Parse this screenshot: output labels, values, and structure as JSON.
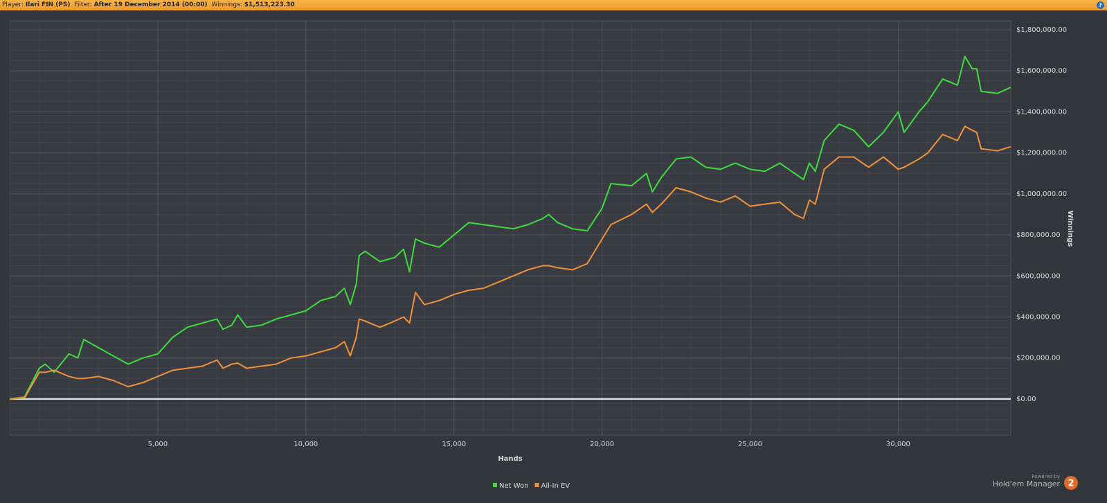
{
  "header": {
    "player_label": "Player:",
    "player": "Ilari FIN (PS)",
    "filter_label": "Filter:",
    "filter": "After 19 December 2014 (00:00)",
    "winnings_label": "Winnings:",
    "winnings": "$1,513,223.30",
    "help_icon": "?"
  },
  "chart_data": {
    "type": "line",
    "xlabel": "Hands",
    "ylabel": "Winnings",
    "x": [
      0,
      500,
      1000,
      1200,
      1500,
      2000,
      2300,
      2500,
      3000,
      3500,
      4000,
      4500,
      5000,
      5500,
      6000,
      6500,
      7000,
      7200,
      7500,
      7700,
      8000,
      8500,
      9000,
      9500,
      10000,
      10500,
      11000,
      11300,
      11500,
      11700,
      11800,
      12000,
      12500,
      13000,
      13300,
      13500,
      13700,
      14000,
      14500,
      15000,
      15500,
      16000,
      16500,
      17000,
      17500,
      18000,
      18200,
      18500,
      19000,
      19500,
      20000,
      20300,
      21000,
      21500,
      21700,
      22000,
      22500,
      23000,
      23500,
      24000,
      24500,
      25000,
      25500,
      26000,
      26500,
      26800,
      27000,
      27200,
      27500,
      28000,
      28500,
      29000,
      29500,
      30000,
      30200,
      30700,
      31000,
      31500,
      32000,
      32250,
      32500,
      32650,
      32800,
      33350,
      33800
    ],
    "series": [
      {
        "name": "Net Won",
        "color": "#3fdc3f",
        "values": [
          0,
          10000,
          150000,
          170000,
          130000,
          220000,
          200000,
          290000,
          250000,
          210000,
          170000,
          200000,
          220000,
          300000,
          350000,
          370000,
          390000,
          340000,
          360000,
          410000,
          350000,
          360000,
          390000,
          410000,
          430000,
          480000,
          500000,
          540000,
          460000,
          560000,
          700000,
          720000,
          670000,
          690000,
          730000,
          620000,
          780000,
          760000,
          740000,
          800000,
          860000,
          850000,
          840000,
          830000,
          850000,
          880000,
          900000,
          860000,
          830000,
          820000,
          930000,
          1050000,
          1040000,
          1100000,
          1010000,
          1080000,
          1170000,
          1180000,
          1130000,
          1120000,
          1150000,
          1120000,
          1110000,
          1150000,
          1100000,
          1070000,
          1150000,
          1110000,
          1260000,
          1340000,
          1310000,
          1230000,
          1300000,
          1400000,
          1300000,
          1400000,
          1450000,
          1560000,
          1530000,
          1670000,
          1610000,
          1610000,
          1500000,
          1490000,
          1520000
        ]
      },
      {
        "name": "All-In EV",
        "color": "#f0923a",
        "values": [
          0,
          5000,
          130000,
          130000,
          140000,
          110000,
          100000,
          100000,
          110000,
          90000,
          60000,
          80000,
          110000,
          140000,
          150000,
          160000,
          190000,
          150000,
          170000,
          175000,
          150000,
          160000,
          170000,
          200000,
          210000,
          230000,
          250000,
          280000,
          210000,
          300000,
          390000,
          380000,
          350000,
          380000,
          400000,
          370000,
          520000,
          460000,
          480000,
          510000,
          530000,
          540000,
          570000,
          600000,
          630000,
          650000,
          650000,
          640000,
          630000,
          660000,
          780000,
          850000,
          900000,
          950000,
          910000,
          950000,
          1030000,
          1010000,
          980000,
          960000,
          990000,
          940000,
          950000,
          960000,
          900000,
          880000,
          970000,
          950000,
          1120000,
          1180000,
          1180000,
          1130000,
          1180000,
          1120000,
          1130000,
          1170000,
          1200000,
          1290000,
          1260000,
          1330000,
          1310000,
          1300000,
          1220000,
          1210000,
          1230000
        ]
      }
    ],
    "xlim": [
      0,
      33800
    ],
    "ylim": [
      -176000,
      1844000
    ],
    "xticks": [
      {
        "value": 5000,
        "label": "5,000"
      },
      {
        "value": 10000,
        "label": "10,000"
      },
      {
        "value": 15000,
        "label": "15,000"
      },
      {
        "value": 20000,
        "label": "20,000"
      },
      {
        "value": 25000,
        "label": "25,000"
      },
      {
        "value": 30000,
        "label": "30,000"
      }
    ],
    "yticks": [
      {
        "value": 0,
        "label": "$0.00"
      },
      {
        "value": 200000,
        "label": "$200,000.00"
      },
      {
        "value": 400000,
        "label": "$400,000.00"
      },
      {
        "value": 600000,
        "label": "$600,000.00"
      },
      {
        "value": 800000,
        "label": "$800,000.00"
      },
      {
        "value": 1000000,
        "label": "$1,000,000.00"
      },
      {
        "value": 1200000,
        "label": "$1,200,000.00"
      },
      {
        "value": 1400000,
        "label": "$1,400,000.00"
      },
      {
        "value": 1600000,
        "label": "$1,600,000.00"
      },
      {
        "value": 1800000,
        "label": "$1,800,000.00"
      }
    ],
    "grid": true,
    "minor_grid": true,
    "legend": "bottom"
  },
  "branding": {
    "powered_by": "Powered by",
    "product": "Hold'em Manager",
    "version": "2"
  }
}
